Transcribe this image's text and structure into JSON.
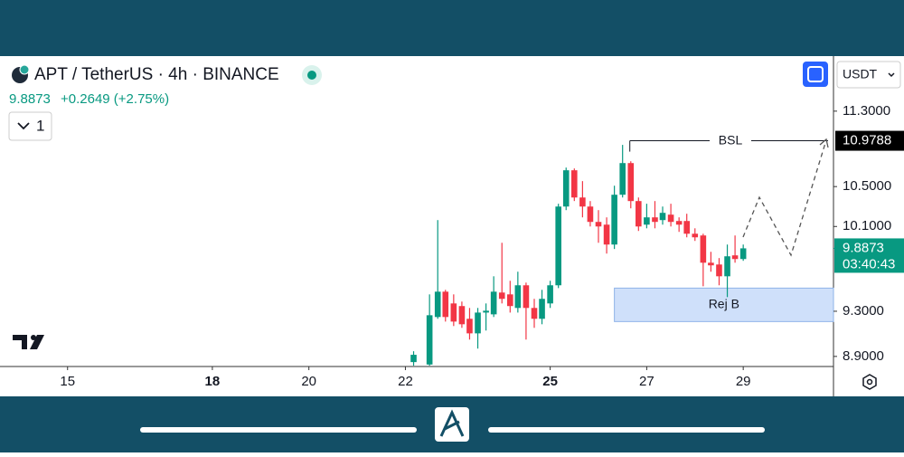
{
  "header": {
    "symbol": "APT / TetherUS · 4h · BINANCE",
    "price": "9.8873",
    "change": "+0.2649 (+2.75%)",
    "interval_count": "1",
    "currency": "USDT"
  },
  "chart_data": {
    "type": "candlestick",
    "log_scale": true,
    "grid": false,
    "up_color": "#089981",
    "down_color": "#f23645",
    "x": [
      22.17,
      22.5,
      22.67,
      22.83,
      23,
      23.17,
      23.33,
      23.5,
      23.67,
      23.83,
      24,
      24.17,
      24.33,
      24.5,
      24.67,
      24.83,
      25,
      25.17,
      25.33,
      25.5,
      25.67,
      25.83,
      26,
      26.17,
      26.33,
      26.5,
      26.67,
      26.83,
      27,
      27.17,
      27.33,
      27.5,
      27.67,
      27.83,
      28,
      28.17,
      28.33,
      28.5,
      28.67,
      28.83,
      29
    ],
    "open": [
      8.851,
      8.83,
      9.248,
      9.479,
      9.371,
      9.347,
      9.232,
      9.102,
      9.288,
      9.272,
      9.471,
      9.454,
      9.33,
      9.538,
      9.33,
      9.232,
      9.371,
      9.538,
      10.298,
      10.668,
      10.389,
      10.298,
      10.145,
      10.118,
      9.924,
      10.417,
      10.743,
      10.353,
      10.118,
      10.19,
      10.163,
      10.217,
      10.154,
      10.154,
      10.029,
      10.012,
      9.75,
      9.733,
      9.622,
      9.82,
      9.785
    ],
    "high": [
      8.945,
      9.454,
      10.163,
      9.496,
      9.454,
      9.388,
      9.33,
      9.33,
      9.371,
      9.622,
      9.941,
      9.58,
      9.665,
      9.563,
      9.413,
      9.496,
      9.58,
      10.326,
      10.696,
      10.687,
      10.556,
      10.353,
      10.262,
      10.19,
      10.509,
      10.935,
      10.762,
      10.389,
      10.326,
      10.353,
      10.298,
      10.326,
      10.19,
      10.226,
      10.082,
      10.029,
      9.854,
      9.794,
      9.924,
      10.012,
      9.924
    ],
    "low": [
      8.82,
      8.82,
      9.232,
      9.207,
      9.167,
      9.151,
      9.047,
      8.968,
      9.127,
      9.248,
      9.371,
      9.288,
      9.288,
      9.047,
      9.151,
      9.183,
      9.33,
      9.512,
      10.262,
      10.353,
      10.19,
      10.1,
      9.941,
      9.837,
      9.881,
      10.389,
      10.28,
      10.056,
      10.082,
      10.082,
      10.118,
      10.1,
      10.047,
      9.994,
      9.959,
      9.529,
      9.665,
      9.538,
      9.429,
      9.75,
      9.768
    ],
    "close": [
      8.914,
      9.264,
      9.479,
      9.248,
      9.207,
      9.183,
      9.102,
      9.288,
      9.305,
      9.479,
      9.413,
      9.347,
      9.538,
      9.33,
      9.232,
      9.413,
      9.538,
      10.298,
      10.668,
      10.389,
      10.298,
      10.145,
      10.1,
      9.924,
      10.417,
      10.743,
      10.353,
      10.1,
      10.19,
      10.145,
      10.235,
      10.145,
      10.118,
      10.029,
      9.994,
      9.75,
      9.725,
      9.622,
      9.811,
      9.785,
      9.8873
    ],
    "xlim": [
      13.6,
      30.87
    ],
    "xticks": [
      15,
      18,
      20,
      22,
      25,
      27,
      29
    ],
    "xtick_bold": [
      false,
      true,
      false,
      false,
      true,
      false,
      false
    ],
    "ylim": [
      8.813,
      11.922
    ],
    "yticks": [
      {
        "value": 8.9,
        "label": "8.9000"
      },
      {
        "value": 9.3,
        "label": "9.3000"
      },
      {
        "value": 10.1,
        "label": "10.1000"
      },
      {
        "value": 10.5,
        "label": "10.5000"
      },
      {
        "value": 11.3,
        "label": "11.3000"
      }
    ],
    "last_price": {
      "value": 9.8873,
      "label": "9.8873",
      "countdown": "03:40:43"
    },
    "annotations": [
      {
        "label": "BSL",
        "x": 26.65,
        "value": 10.9788,
        "value_label": "10.9788"
      },
      {
        "label": "Rej B",
        "x": 26.33,
        "range": [
          9.207,
          9.512
        ]
      }
    ]
  }
}
